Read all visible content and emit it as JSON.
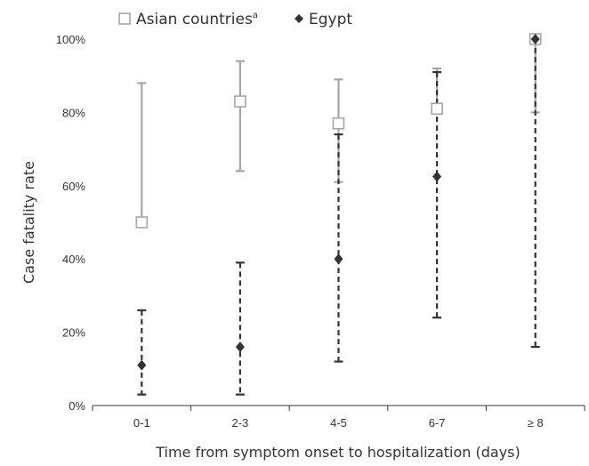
{
  "chart_data": {
    "type": "scatter",
    "xlabel": "Time from symptom onset to hospitalization (days)",
    "ylabel": "Case fatality rate",
    "categories": [
      "0-1",
      "2-3",
      "4-5",
      "6-7",
      "≥ 8"
    ],
    "y_ticks": [
      "0%",
      "20%",
      "40%",
      "60%",
      "80%",
      "100%"
    ],
    "ylim": [
      0,
      100
    ],
    "grid": false,
    "legend_position": "top",
    "series": [
      {
        "name": "Asian countries",
        "name_superscript": "a",
        "marker": "open-square",
        "color": "#a6a6a6",
        "error_style": "solid",
        "values": [
          50,
          83,
          77,
          81,
          100
        ],
        "lower": [
          null,
          64,
          61,
          null,
          80
        ],
        "upper": [
          88,
          94,
          89,
          92,
          null
        ]
      },
      {
        "name": "Egypt",
        "marker": "filled-diamond",
        "color": "#333333",
        "error_style": "dashed",
        "values": [
          11,
          16,
          40,
          62.5,
          100
        ],
        "lower": [
          3,
          3,
          12,
          24,
          16
        ],
        "upper": [
          26,
          39,
          74,
          91,
          100
        ]
      }
    ]
  }
}
